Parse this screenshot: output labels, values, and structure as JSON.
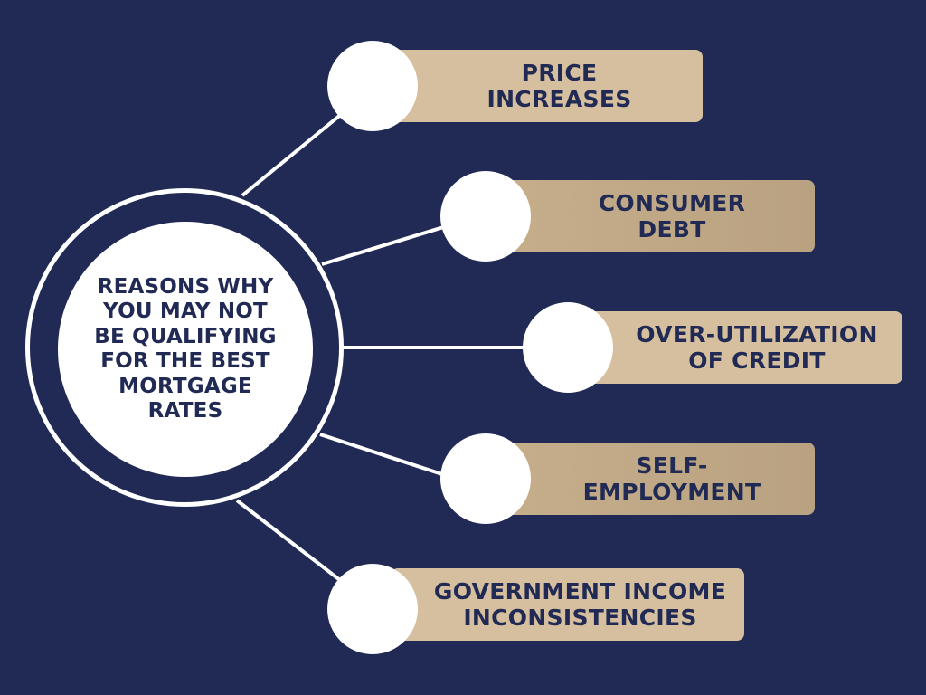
{
  "center": {
    "label": "REASONS WHY\nYOU MAY NOT\nBE QUALIFYING\nFOR THE BEST\nMORTGAGE\nRATES"
  },
  "items": [
    {
      "label": "PRICE\nINCREASES"
    },
    {
      "label": "CONSUMER\nDEBT"
    },
    {
      "label": "OVER-UTILIZATION\nOF CREDIT"
    },
    {
      "label": "SELF-\nEMPLOYMENT"
    },
    {
      "label": "GOVERNMENT INCOME\nINCONSISTENCIES"
    }
  ],
  "colors": {
    "background": "#202a54",
    "text": "#202a54",
    "circle": "#ffffff",
    "connector": "#ffffff",
    "pill_light": "#d6bf9e",
    "pill_dark": "#b9a281"
  }
}
